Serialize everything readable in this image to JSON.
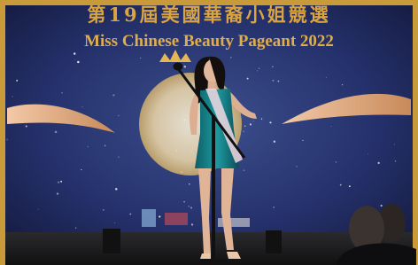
{
  "banner": {
    "title_chinese": "第19屆美國華裔小姐競選",
    "title_english": "Miss Chinese Beauty Pageant 2022"
  }
}
